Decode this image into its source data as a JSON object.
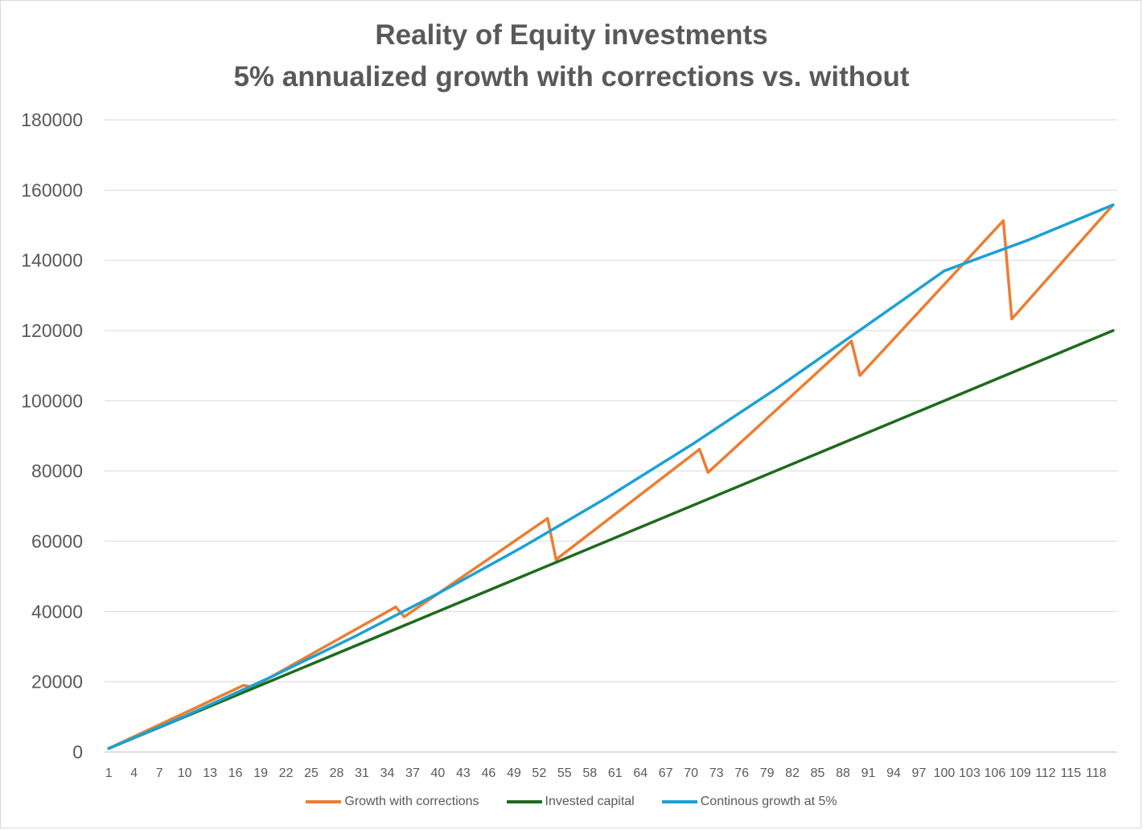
{
  "chart_data": {
    "type": "line",
    "title": [
      "Reality of Equity investments",
      "5% annualized growth with corrections vs. without"
    ],
    "xlabel": "",
    "ylabel": "",
    "ylim": [
      0,
      180000
    ],
    "yticks": [
      0,
      20000,
      40000,
      60000,
      80000,
      100000,
      120000,
      140000,
      160000,
      180000
    ],
    "x_range": [
      1,
      120
    ],
    "xtick_labels": [
      1,
      4,
      7,
      10,
      13,
      16,
      19,
      22,
      25,
      28,
      31,
      34,
      37,
      40,
      43,
      46,
      49,
      52,
      55,
      58,
      61,
      64,
      67,
      70,
      73,
      76,
      79,
      82,
      85,
      88,
      91,
      94,
      97,
      100,
      103,
      106,
      109,
      112,
      115,
      118
    ],
    "grid": "horizontal",
    "legend_position": "bottom",
    "series": [
      {
        "name": "Growth with corrections",
        "color": "#ed7d31",
        "points": [
          [
            1,
            1000
          ],
          [
            17,
            19000
          ],
          [
            18,
            18400
          ],
          [
            35,
            41300
          ],
          [
            36,
            38500
          ],
          [
            53,
            66500
          ],
          [
            54,
            54800
          ],
          [
            71,
            86200
          ],
          [
            72,
            79600
          ],
          [
            89,
            117000
          ],
          [
            90,
            107200
          ],
          [
            107,
            151300
          ],
          [
            108,
            123300
          ],
          [
            120,
            155800
          ]
        ]
      },
      {
        "name": "Invested capital",
        "color": "#1e6b1e",
        "points": [
          [
            1,
            1000
          ],
          [
            120,
            120000
          ]
        ]
      },
      {
        "name": "Continous growth at 5%",
        "color": "#1ba1d6",
        "points": [
          [
            1,
            1000
          ],
          [
            10,
            10200
          ],
          [
            20,
            21100
          ],
          [
            30,
            32700
          ],
          [
            40,
            45100
          ],
          [
            50,
            58300
          ],
          [
            60,
            72400
          ],
          [
            70,
            87400
          ],
          [
            80,
            103300
          ],
          [
            90,
            120100
          ],
          [
            100,
            137000
          ],
          [
            110,
            145800
          ],
          [
            120,
            155800
          ]
        ]
      }
    ]
  }
}
